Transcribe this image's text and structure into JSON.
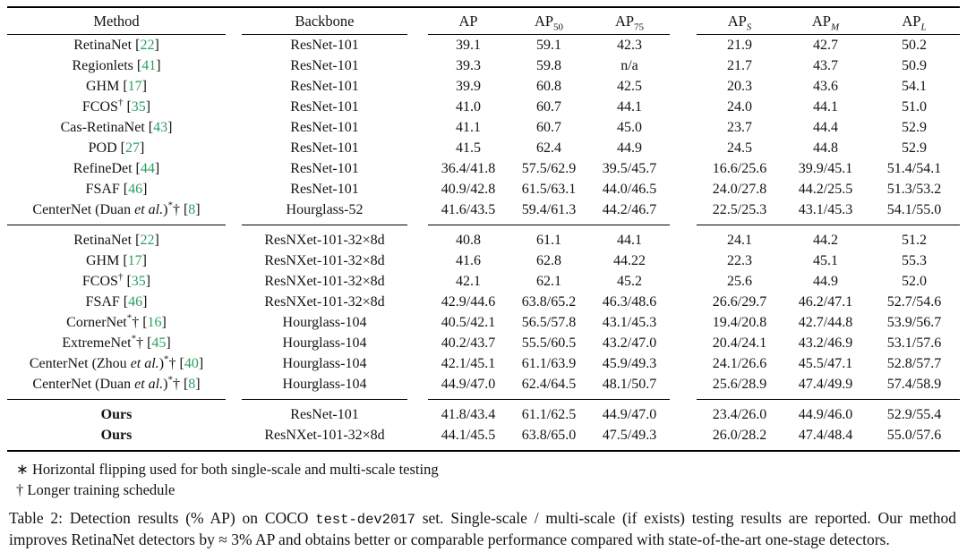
{
  "colors": {
    "citation_green": "#2b9e63",
    "text": "#131313",
    "background": "#ffffff",
    "rule": "#000000"
  },
  "table": {
    "columns": [
      {
        "label": "Method"
      },
      {
        "label": "Backbone"
      },
      {
        "base": "AP",
        "sub": ""
      },
      {
        "base": "AP",
        "sub": "50"
      },
      {
        "base": "AP",
        "sub": "75"
      },
      {
        "base": "AP",
        "sub": "S"
      },
      {
        "base": "AP",
        "sub": "M"
      },
      {
        "base": "AP",
        "sub": "L"
      }
    ],
    "groups": [
      {
        "rows": [
          {
            "method": {
              "pre": "RetinaNet",
              "cite": "22"
            },
            "backbone": "ResNet-101",
            "values": [
              "39.1",
              "59.1",
              "42.3",
              "21.9",
              "42.7",
              "50.2"
            ]
          },
          {
            "method": {
              "pre": "Regionlets",
              "cite": "41"
            },
            "backbone": "ResNet-101",
            "values": [
              "39.3",
              "59.8",
              "n/a",
              "21.7",
              "43.7",
              "50.9"
            ]
          },
          {
            "method": {
              "pre": "GHM",
              "cite": "17"
            },
            "backbone": "ResNet-101",
            "values": [
              "39.9",
              "60.8",
              "42.5",
              "20.3",
              "43.6",
              "54.1"
            ]
          },
          {
            "method": {
              "pre": "FCOS",
              "sup": "†",
              "cite": "35"
            },
            "backbone": "ResNet-101",
            "values": [
              "41.0",
              "60.7",
              "44.1",
              "24.0",
              "44.1",
              "51.0"
            ]
          },
          {
            "method": {
              "pre": "Cas-RetinaNet",
              "cite": "43"
            },
            "backbone": "ResNet-101",
            "values": [
              "41.1",
              "60.7",
              "45.0",
              "23.7",
              "44.4",
              "52.9"
            ]
          },
          {
            "method": {
              "pre": "POD",
              "cite": "27"
            },
            "backbone": "ResNet-101",
            "values": [
              "41.5",
              "62.4",
              "44.9",
              "24.5",
              "44.8",
              "52.9"
            ]
          },
          {
            "method": {
              "pre": "RefineDet",
              "cite": "44"
            },
            "backbone": "ResNet-101",
            "values": [
              "36.4/41.8",
              "57.5/62.9",
              "39.5/45.7",
              "16.6/25.6",
              "39.9/45.1",
              "51.4/54.1"
            ]
          },
          {
            "method": {
              "pre": "FSAF",
              "cite": "46"
            },
            "backbone": "ResNet-101",
            "values": [
              "40.9/42.8",
              "61.5/63.1",
              "44.0/46.5",
              "24.0/27.8",
              "44.2/25.5",
              "51.3/53.2"
            ]
          },
          {
            "method": {
              "pre": "CenterNet (Duan ",
              "it": "et al.",
              "post": ")",
              "sup": "*",
              "trail": "†",
              "cite": "8"
            },
            "backbone": "Hourglass-52",
            "values": [
              "41.6/43.5",
              "59.4/61.3",
              "44.2/46.7",
              "22.5/25.3",
              "43.1/45.3",
              "54.1/55.0"
            ]
          }
        ]
      },
      {
        "rows": [
          {
            "method": {
              "pre": "RetinaNet",
              "cite": "22"
            },
            "backbone": "ResNXet-101-32×8d",
            "values": [
              "40.8",
              "61.1",
              "44.1",
              "24.1",
              "44.2",
              "51.2"
            ]
          },
          {
            "method": {
              "pre": "GHM",
              "cite": "17"
            },
            "backbone": "ResNXet-101-32×8d",
            "values": [
              "41.6",
              "62.8",
              "44.22",
              "22.3",
              "45.1",
              "55.3"
            ]
          },
          {
            "method": {
              "pre": "FCOS",
              "sup": "†",
              "cite": "35"
            },
            "backbone": "ResNXet-101-32×8d",
            "values": [
              "42.1",
              "62.1",
              "45.2",
              "25.6",
              "44.9",
              "52.0"
            ]
          },
          {
            "method": {
              "pre": "FSAF",
              "cite": "46"
            },
            "backbone": "ResNXet-101-32×8d",
            "values": [
              "42.9/44.6",
              "63.8/65.2",
              "46.3/48.6",
              "26.6/29.7",
              "46.2/47.1",
              "52.7/54.6"
            ]
          },
          {
            "method": {
              "pre": "CornerNet",
              "sup": "*",
              "trail": "†",
              "cite": "16"
            },
            "backbone": "Hourglass-104",
            "values": [
              "40.5/42.1",
              "56.5/57.8",
              "43.1/45.3",
              "19.4/20.8",
              "42.7/44.8",
              "53.9/56.7"
            ]
          },
          {
            "method": {
              "pre": "ExtremeNet",
              "sup": "*",
              "trail": "†",
              "cite": "45"
            },
            "backbone": "Hourglass-104",
            "values": [
              "40.2/43.7",
              "55.5/60.5",
              "43.2/47.0",
              "20.4/24.1",
              "43.2/46.9",
              "53.1/57.6"
            ]
          },
          {
            "method": {
              "pre": "CenterNet (Zhou ",
              "it": "et al.",
              "post": ")",
              "sup": "*",
              "trail": "†",
              "cite": "40"
            },
            "backbone": "Hourglass-104",
            "values": [
              "42.1/45.1",
              "61.1/63.9",
              "45.9/49.3",
              "24.1/26.6",
              "45.5/47.1",
              "52.8/57.7"
            ]
          },
          {
            "method": {
              "pre": "CenterNet (Duan ",
              "it": "et al.",
              "post": ")",
              "sup": "*",
              "trail": "†",
              "cite": "8"
            },
            "backbone": "Hourglass-104",
            "values": [
              "44.9/47.0",
              "62.4/64.5",
              "48.1/50.7",
              "25.6/28.9",
              "47.4/49.9",
              "57.4/58.9"
            ]
          }
        ]
      },
      {
        "rows": [
          {
            "method": {
              "pre": "Ours"
            },
            "bold": true,
            "backbone": "ResNet-101",
            "values": [
              "41.8/43.4",
              "61.1/62.5",
              "44.9/47.0",
              "23.4/26.0",
              "44.9/46.0",
              "52.9/55.4"
            ]
          },
          {
            "method": {
              "pre": "Ours"
            },
            "bold": true,
            "backbone": "ResNXet-101-32×8d",
            "values": [
              "44.1/45.5",
              "63.8/65.0",
              "47.5/49.3",
              "26.0/28.2",
              "47.4/48.4",
              "55.0/57.6"
            ]
          }
        ]
      }
    ]
  },
  "footnotes": [
    "∗ Horizontal flipping used for both single-scale and multi-scale testing",
    "† Longer training schedule"
  ],
  "caption": {
    "part1": "Table 2:  Detection results (% AP) on COCO ",
    "mono": "test-dev2017",
    "part2": " set.  Single-scale / multi-scale (if exists) testing results are reported.  Our method improves RetinaNet detectors by ≈ 3% AP and obtains better or comparable performance compared with state-of-the-art one-stage detectors."
  }
}
